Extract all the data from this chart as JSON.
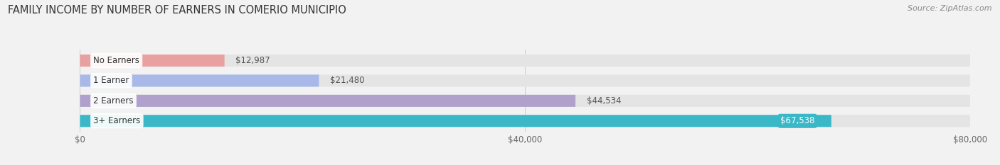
{
  "title": "FAMILY INCOME BY NUMBER OF EARNERS IN COMERIO MUNICIPIO",
  "source": "Source: ZipAtlas.com",
  "categories": [
    "No Earners",
    "1 Earner",
    "2 Earners",
    "3+ Earners"
  ],
  "values": [
    12987,
    21480,
    44534,
    67538
  ],
  "bar_colors": [
    "#e8a0a0",
    "#a8b8e8",
    "#b0a0cc",
    "#3ab8c8"
  ],
  "label_colors": [
    "#555555",
    "#555555",
    "#555555",
    "#ffffff"
  ],
  "xmax": 80000,
  "xticks": [
    0,
    40000,
    80000
  ],
  "xtick_labels": [
    "$0",
    "$40,000",
    "$80,000"
  ],
  "background_color": "#f2f2f2",
  "bar_bg_color": "#e4e4e4",
  "title_fontsize": 10.5,
  "source_fontsize": 8,
  "label_fontsize": 8.5,
  "category_fontsize": 8.5
}
